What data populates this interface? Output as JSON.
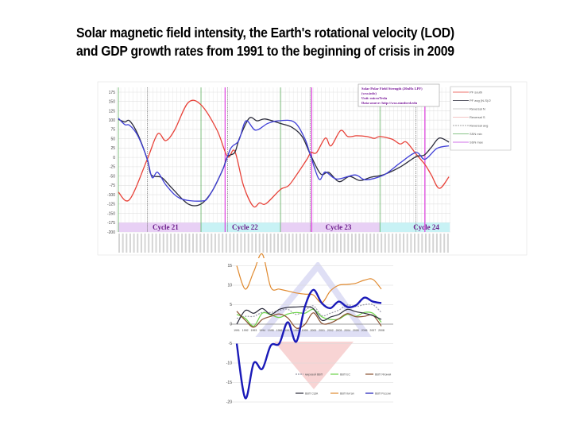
{
  "slide": {
    "title_line1": "Solar magnetic field intensity, the Earth's rotational velocity (LOD)",
    "title_line2": "and GDP growth rates from 1991 to the beginning of crisis in 2009"
  },
  "chart_data": [
    {
      "type": "line",
      "info_box": [
        "Solar Polar Field Strength (20nHz LPF)",
        "(wso.info)",
        "Unit: microTesla",
        "Data source: http://wso.stanford.edu"
      ],
      "ylim": [
        -200,
        175
      ],
      "yticks": [
        175,
        150,
        125,
        100,
        75,
        50,
        25,
        0,
        -25,
        -50,
        -75,
        -100,
        -125,
        -150,
        -175,
        -200
      ],
      "xlim": [
        1976,
        2018
      ],
      "grid": true,
      "legend_position": "right",
      "legend": [
        "PF south",
        "PF avg (N-S)/2",
        "Reversal N",
        "Reversal S",
        "Reversal avg",
        "SSN min",
        "SSN max"
      ],
      "cycles": [
        {
          "label": "Cycle 21",
          "start": 1976.2,
          "end": 1986.5,
          "color": "#e8d0f5"
        },
        {
          "label": "Cycle 22",
          "start": 1986.5,
          "end": 1996.4,
          "color": "#c8f2f5"
        },
        {
          "label": "Cycle 23",
          "start": 1996.4,
          "end": 2008.8,
          "color": "#e8d0f5"
        },
        {
          "label": "Cycle 24",
          "start": 2008.8,
          "end": 2017.5,
          "color": "#c8f2f5"
        }
      ],
      "ssn_min": [
        1976.2,
        1986.5,
        1996.4,
        2008.8
      ],
      "ssn_max": [
        1989.5,
        2000.3,
        2014.4
      ],
      "reversals": [
        1979.8,
        1989.8,
        2000.1,
        2013.3
      ],
      "series": [
        {
          "name": "PF south",
          "color": "#e8433a",
          "x": [
            1976.2,
            1977.6,
            1979.8,
            1981.1,
            1982.1,
            1983.2,
            1984.9,
            1986.5,
            1988.5,
            1989.8,
            1990.7,
            1991.8,
            1993.0,
            1993.8,
            1994.6,
            1996.4,
            1997.4,
            1998.4,
            1999.7,
            2000.2,
            2000.9,
            2002.0,
            2002.7,
            2003.9,
            2004.8,
            2005.9,
            2007.2,
            2008.1,
            2008.8,
            2010.3,
            2011.3,
            2012.1,
            2013.3,
            2014.4,
            2015.2,
            2016.2,
            2017.4
          ],
          "y": [
            -93,
            -113,
            -5,
            63,
            45,
            73,
            147,
            141,
            73,
            2,
            17,
            -76,
            -131,
            -122,
            -124,
            -86,
            -76,
            -47,
            -5,
            13,
            13,
            52,
            31,
            72,
            56,
            58,
            56,
            51,
            56,
            49,
            36,
            41,
            9,
            -19,
            -47,
            -83,
            -52
          ]
        },
        {
          "name": "PF avg (N-S)/2",
          "color": "#2a2a3a",
          "x": [
            1976.2,
            1977.0,
            1977.6,
            1978.6,
            1979.8,
            1980.3,
            1981.6,
            1982.9,
            1984.9,
            1986.5,
            1987.9,
            1989.2,
            1989.8,
            1990.7,
            1991.3,
            1992.5,
            1993.5,
            1994.5,
            1996.4,
            1997.8,
            1999.1,
            2000.1,
            2001.4,
            2002.4,
            2003.7,
            2005.0,
            2006.3,
            2007.7,
            2009.3,
            2011.3,
            2013.3,
            2014.3,
            2015.2,
            2016.2,
            2017.4
          ],
          "y": [
            102,
            95,
            98,
            63,
            -5,
            -47,
            -54,
            -83,
            -125,
            -125,
            -90,
            -33,
            2,
            13,
            52,
            105,
            98,
            103,
            91,
            81,
            56,
            9,
            -44,
            -40,
            -65,
            -51,
            -62,
            -53,
            -46,
            -26,
            2,
            6,
            27,
            52,
            41
          ]
        },
        {
          "name": "PF avg",
          "color": "#4040d8",
          "x": [
            1976.2,
            1977.0,
            1977.6,
            1978.6,
            1979.8,
            1980.4,
            1981.1,
            1982.2,
            1983.9,
            1986.5,
            1987.5,
            1989.2,
            1990.2,
            1991.2,
            1992.1,
            1993.3,
            1994.8,
            1996.1,
            1998.1,
            1999.4,
            2000.1,
            2001.2,
            2002.0,
            2003.4,
            2005.7,
            2007.0,
            2009.3,
            2011.3,
            2013.3,
            2014.4,
            2015.9,
            2017.4
          ],
          "y": [
            105,
            88,
            86,
            59,
            -5,
            -54,
            -40,
            -76,
            -110,
            -117,
            -104,
            -33,
            24,
            45,
            98,
            73,
            91,
            98,
            95,
            52,
            9,
            -58,
            -39,
            -58,
            -47,
            -60,
            -47,
            -15,
            13,
            -5,
            24,
            31
          ]
        }
      ]
    },
    {
      "type": "line",
      "ylim": [
        -20,
        15
      ],
      "yticks": [
        15,
        10,
        5,
        0,
        -5,
        -10,
        -15,
        -20
      ],
      "categories": [
        "1991",
        "1992",
        "1993",
        "1994",
        "1995",
        "1996",
        "1997",
        "1998",
        "1999",
        "2000",
        "2001",
        "2002",
        "2003",
        "2004",
        "2005",
        "2006",
        "2007",
        "2008"
      ],
      "grid": true,
      "legend_position": "bottom-right",
      "series": [
        {
          "name": "мировой ВВП",
          "color": "#9a9aa8",
          "dashed": true,
          "values": [
            1.5,
            2,
            2,
            3,
            3,
            3.5,
            3.8,
            2.5,
            3.5,
            4.7,
            2.2,
            2.8,
            3.6,
            4.9,
            4.5,
            5,
            5,
            3
          ]
        },
        {
          "name": "ВВП ЕС",
          "color": "#6cd34a",
          "values": [
            2.5,
            1.5,
            -0.5,
            2.8,
            2.4,
            1.7,
            2.6,
            3.0,
            2.8,
            3.8,
            1.9,
            1.2,
            1.3,
            2.5,
            2.0,
            3.0,
            2.8,
            0.5
          ]
        },
        {
          "name": "ВВП Япония",
          "color": "#8a5030",
          "values": [
            3.3,
            1,
            -0.8,
            1.2,
            2,
            2.6,
            1.6,
            -1.0,
            -0.1,
            2.9,
            0.2,
            0.3,
            1.4,
            2.7,
            1.9,
            2.0,
            2.3,
            -0.5
          ]
        },
        {
          "name": "ВВП США",
          "color": "#2a2a3a",
          "values": [
            0,
            3.5,
            2.8,
            4,
            2.5,
            3.8,
            4.3,
            4.4,
            4.5,
            4,
            1,
            1.8,
            2.5,
            3.8,
            3.2,
            2.8,
            2.2,
            1.2
          ]
        },
        {
          "name": "ВВП Китая",
          "color": "#e08a30",
          "values": [
            15,
            9,
            13.5,
            18,
            9.5,
            9,
            8.5,
            8,
            7.7,
            7.5,
            5.5,
            8.5,
            10,
            10.2,
            10.5,
            11.3,
            11.5,
            9
          ]
        },
        {
          "name": "ВВП России",
          "color": "#1a1ab8",
          "values": [
            -5,
            -19,
            -10,
            -11.5,
            -5.5,
            -5,
            0.5,
            -4.5,
            4.4,
            8.8,
            5.4,
            4.1,
            5.8,
            4.4,
            4.8,
            6.8,
            5.8,
            5.4
          ]
        }
      ]
    }
  ]
}
